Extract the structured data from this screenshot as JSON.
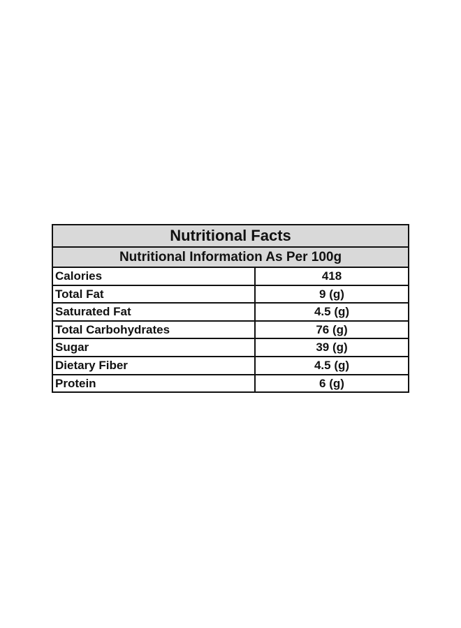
{
  "header": {
    "title": "Nutritional Facts",
    "subtitle": "Nutritional Information As Per 100g"
  },
  "table": {
    "rows": [
      [
        "Calories",
        "418"
      ],
      [
        "Total Fat",
        "9 (g)"
      ],
      [
        "Saturated Fat",
        "4.5 (g)"
      ],
      [
        "Total Carbohydrates",
        "76 (g)"
      ],
      [
        "Sugar",
        "39 (g)"
      ],
      [
        "Dietary Fiber",
        "4.5 (g)"
      ],
      [
        "Protein",
        "6 (g)"
      ]
    ]
  }
}
